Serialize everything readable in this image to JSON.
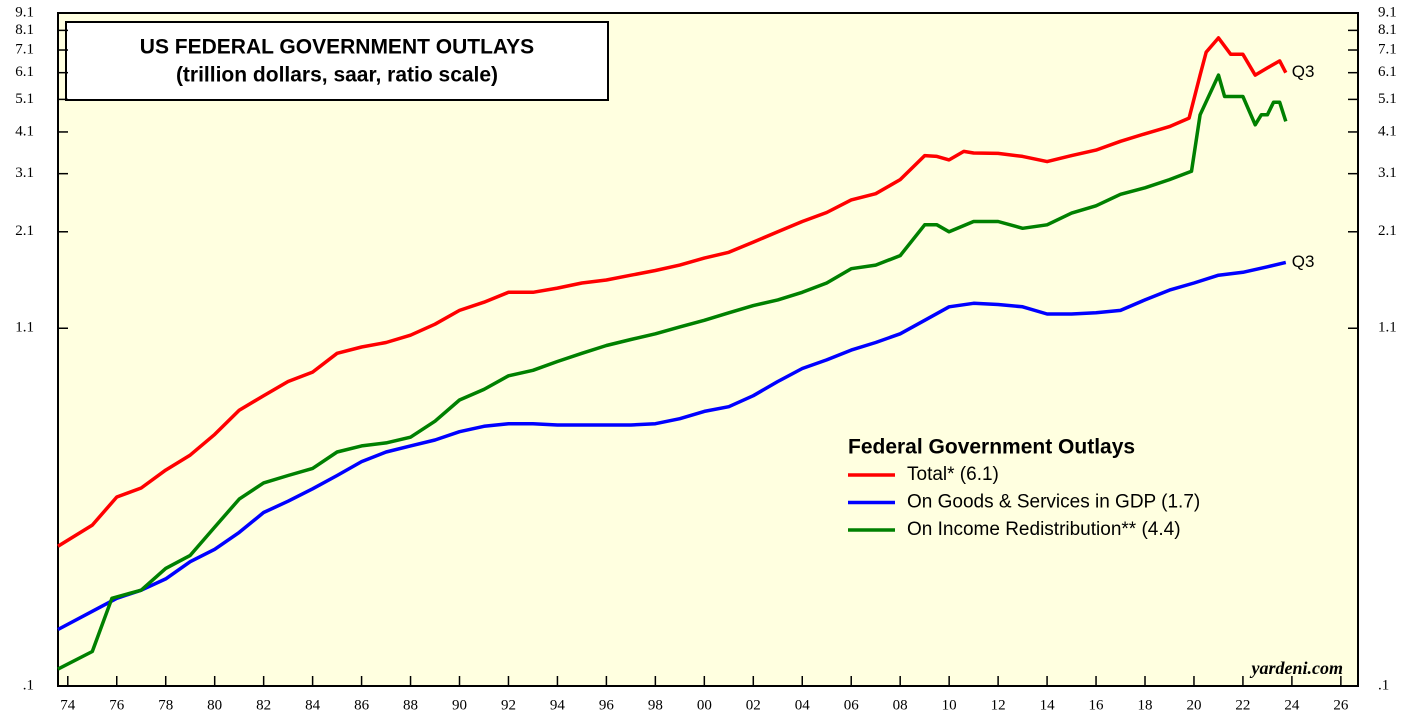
{
  "chart_data": {
    "type": "line",
    "title": "US FEDERAL GOVERNMENT OUTLAYS",
    "subtitle": "(trillion dollars, saar, ratio scale)",
    "legend_title": "Federal Government Outlays",
    "source": "yardeni.com",
    "log_scale": true,
    "background": "#ffffe0",
    "xlim": [
      1973.6,
      2026.7
    ],
    "ylim": [
      0.1,
      9.1
    ],
    "yticks": [
      {
        "value": 0.1,
        "label": ".1"
      },
      1.1,
      2.1,
      3.1,
      4.1,
      5.1,
      6.1,
      7.1,
      8.1,
      9.1
    ],
    "xticks": [
      {
        "value": 1974,
        "label": "74"
      },
      {
        "value": 1976,
        "label": "76"
      },
      {
        "value": 1978,
        "label": "78"
      },
      {
        "value": 1980,
        "label": "80"
      },
      {
        "value": 1982,
        "label": "82"
      },
      {
        "value": 1984,
        "label": "84"
      },
      {
        "value": 1986,
        "label": "86"
      },
      {
        "value": 1988,
        "label": "88"
      },
      {
        "value": 1990,
        "label": "90"
      },
      {
        "value": 1992,
        "label": "92"
      },
      {
        "value": 1994,
        "label": "94"
      },
      {
        "value": 1996,
        "label": "96"
      },
      {
        "value": 1998,
        "label": "98"
      },
      {
        "value": 2000,
        "label": "00"
      },
      {
        "value": 2002,
        "label": "02"
      },
      {
        "value": 2004,
        "label": "04"
      },
      {
        "value": 2006,
        "label": "06"
      },
      {
        "value": 2008,
        "label": "08"
      },
      {
        "value": 2010,
        "label": "10"
      },
      {
        "value": 2012,
        "label": "12"
      },
      {
        "value": 2014,
        "label": "14"
      },
      {
        "value": 2016,
        "label": "16"
      },
      {
        "value": 2018,
        "label": "18"
      },
      {
        "value": 2020,
        "label": "20"
      },
      {
        "value": 2022,
        "label": "22"
      },
      {
        "value": 2024,
        "label": "24"
      },
      {
        "value": 2026,
        "label": "26"
      }
    ],
    "series": [
      {
        "name": "Total* (6.1)",
        "color": "#ff0000",
        "end_label": "Q3",
        "x": [
          1973.6,
          1975,
          1976,
          1977,
          1978,
          1979,
          1980,
          1981,
          1982,
          1983,
          1984,
          1985,
          1986,
          1987,
          1988,
          1989,
          1990,
          1991,
          1992,
          1993,
          1994,
          1995,
          1996,
          1997,
          1998,
          1999,
          2000,
          2001,
          2002,
          2003,
          2004,
          2005,
          2006,
          2007,
          2008,
          2009,
          2009.5,
          2010,
          2010.6,
          2011,
          2012,
          2013,
          2014,
          2015,
          2016,
          2017,
          2018,
          2019,
          2019.8,
          2020.25,
          2020.5,
          2021,
          2021.5,
          2022,
          2022.5,
          2023,
          2023.5,
          2023.75
        ],
        "values": [
          0.255,
          0.294,
          0.355,
          0.377,
          0.425,
          0.47,
          0.54,
          0.635,
          0.7,
          0.77,
          0.82,
          0.93,
          0.97,
          1.0,
          1.05,
          1.13,
          1.24,
          1.31,
          1.4,
          1.4,
          1.44,
          1.49,
          1.52,
          1.57,
          1.62,
          1.68,
          1.76,
          1.83,
          1.96,
          2.1,
          2.25,
          2.39,
          2.6,
          2.71,
          2.98,
          3.5,
          3.48,
          3.4,
          3.6,
          3.56,
          3.55,
          3.48,
          3.36,
          3.5,
          3.63,
          3.85,
          4.05,
          4.25,
          4.5,
          6.0,
          7.0,
          7.7,
          6.9,
          6.9,
          6.0,
          6.3,
          6.6,
          6.1
        ]
      },
      {
        "name": "On Goods & Services in GDP (1.7)",
        "color": "#0000ff",
        "end_label": "Q3",
        "x": [
          1973.6,
          1975,
          1976,
          1977,
          1978,
          1979,
          1980,
          1981,
          1982,
          1983,
          1984,
          1985,
          1986,
          1987,
          1988,
          1989,
          1990,
          1991,
          1992,
          1993,
          1994,
          1995,
          1996,
          1997,
          1998,
          1999,
          2000,
          2001,
          2002,
          2003,
          2004,
          2005,
          2006,
          2007,
          2008,
          2009,
          2010,
          2011,
          2012,
          2013,
          2014,
          2015,
          2016,
          2017,
          2018,
          2019,
          2020,
          2021,
          2022,
          2023,
          2023.75
        ],
        "values": [
          0.146,
          0.165,
          0.18,
          0.19,
          0.205,
          0.23,
          0.25,
          0.28,
          0.32,
          0.345,
          0.375,
          0.41,
          0.45,
          0.48,
          0.5,
          0.52,
          0.55,
          0.57,
          0.58,
          0.58,
          0.575,
          0.575,
          0.575,
          0.575,
          0.58,
          0.6,
          0.63,
          0.65,
          0.7,
          0.77,
          0.84,
          0.89,
          0.95,
          1.0,
          1.06,
          1.16,
          1.27,
          1.3,
          1.29,
          1.27,
          1.21,
          1.21,
          1.22,
          1.24,
          1.33,
          1.42,
          1.49,
          1.57,
          1.6,
          1.66,
          1.71
        ]
      },
      {
        "name": "On Income Redistribution** (4.4)",
        "color": "#008000",
        "x": [
          1973.6,
          1975,
          1975.8,
          1977,
          1978,
          1979,
          1980,
          1981,
          1982,
          1983,
          1984,
          1985,
          1986,
          1987,
          1988,
          1989,
          1990,
          1991,
          1992,
          1993,
          1994,
          1995,
          1996,
          1997,
          1998,
          1999,
          2000,
          2001,
          2002,
          2003,
          2004,
          2005,
          2006,
          2007,
          2008,
          2009,
          2009.5,
          2010,
          2011,
          2012,
          2013,
          2014,
          2015,
          2016,
          2017,
          2018,
          2019,
          2019.9,
          2020.25,
          2021,
          2021.25,
          2022,
          2022.5,
          2022.75,
          2023,
          2023.25,
          2023.5,
          2023.75
        ],
        "values": [
          0.112,
          0.126,
          0.18,
          0.19,
          0.22,
          0.24,
          0.29,
          0.35,
          0.39,
          0.41,
          0.43,
          0.48,
          0.5,
          0.51,
          0.53,
          0.59,
          0.68,
          0.73,
          0.8,
          0.83,
          0.88,
          0.93,
          0.98,
          1.02,
          1.06,
          1.11,
          1.16,
          1.22,
          1.28,
          1.33,
          1.4,
          1.49,
          1.64,
          1.68,
          1.79,
          2.2,
          2.2,
          2.1,
          2.25,
          2.25,
          2.15,
          2.2,
          2.38,
          2.5,
          2.7,
          2.82,
          2.98,
          3.15,
          4.6,
          6.0,
          5.2,
          5.2,
          4.3,
          4.6,
          4.6,
          5.0,
          5.0,
          4.4
        ]
      }
    ]
  }
}
